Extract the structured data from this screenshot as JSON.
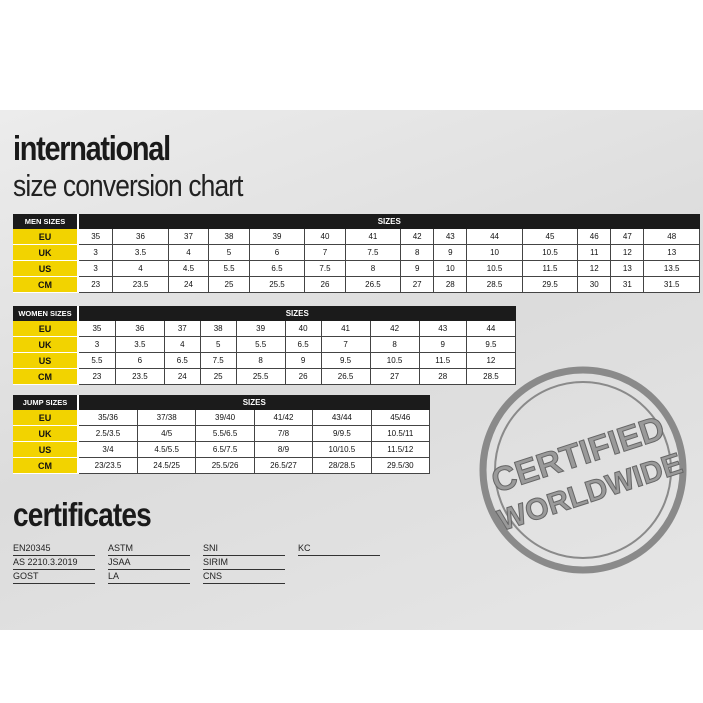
{
  "title": {
    "line1": "international",
    "line2": "size conversion chart"
  },
  "sizes_header": "SIZES",
  "tables": [
    {
      "label": "MEN SIZES",
      "rows": [
        {
          "label": "EU",
          "values": [
            "35",
            "36",
            "37",
            "38",
            "39",
            "40",
            "41",
            "42",
            "43",
            "44",
            "45",
            "46",
            "47",
            "48"
          ]
        },
        {
          "label": "UK",
          "values": [
            "3",
            "3.5",
            "4",
            "5",
            "6",
            "7",
            "7.5",
            "8",
            "9",
            "10",
            "10.5",
            "11",
            "12",
            "13"
          ]
        },
        {
          "label": "US",
          "values": [
            "3",
            "4",
            "4.5",
            "5.5",
            "6.5",
            "7.5",
            "8",
            "9",
            "10",
            "10.5",
            "11.5",
            "12",
            "13",
            "13.5"
          ]
        },
        {
          "label": "CM",
          "values": [
            "23",
            "23.5",
            "24",
            "25",
            "25.5",
            "26",
            "26.5",
            "27",
            "28",
            "28.5",
            "29.5",
            "30",
            "31",
            "31.5"
          ]
        }
      ]
    },
    {
      "label": "WOMEN SIZES",
      "rows": [
        {
          "label": "EU",
          "values": [
            "35",
            "36",
            "37",
            "38",
            "39",
            "40",
            "41",
            "42",
            "43",
            "44"
          ]
        },
        {
          "label": "UK",
          "values": [
            "3",
            "3.5",
            "4",
            "5",
            "5.5",
            "6.5",
            "7",
            "8",
            "9",
            "9.5"
          ]
        },
        {
          "label": "US",
          "values": [
            "5.5",
            "6",
            "6.5",
            "7.5",
            "8",
            "9",
            "9.5",
            "10.5",
            "11.5",
            "12"
          ]
        },
        {
          "label": "CM",
          "values": [
            "23",
            "23.5",
            "24",
            "25",
            "25.5",
            "26",
            "26.5",
            "27",
            "28",
            "28.5"
          ]
        }
      ]
    },
    {
      "label": "JUMP SIZES",
      "rows": [
        {
          "label": "EU",
          "values": [
            "35/36",
            "37/38",
            "39/40",
            "41/42",
            "43/44",
            "45/46"
          ]
        },
        {
          "label": "UK",
          "values": [
            "2.5/3.5",
            "4/5",
            "5.5/6.5",
            "7/8",
            "9/9.5",
            "10.5/11"
          ]
        },
        {
          "label": "US",
          "values": [
            "3/4",
            "4.5/5.5",
            "6.5/7.5",
            "8/9",
            "10/10.5",
            "11.5/12"
          ]
        },
        {
          "label": "CM",
          "values": [
            "23/23.5",
            "24.5/25",
            "25.5/26",
            "26.5/27",
            "28/28.5",
            "29.5/30"
          ]
        }
      ]
    }
  ],
  "certificates": {
    "heading": "certificates",
    "items": [
      "EN20345",
      "AS 2210.3.2019",
      "GOST",
      "ASTM",
      "JSAA",
      "LA",
      "SNI",
      "SIRIM",
      "CNS",
      "KC"
    ]
  },
  "stamp": {
    "line1": "CERTIFIED",
    "line2": "WORLDWIDE"
  },
  "colors": {
    "label_bg": "#f2d300",
    "header_bg": "#1b1b1b",
    "stamp": "#8a8a8a"
  }
}
